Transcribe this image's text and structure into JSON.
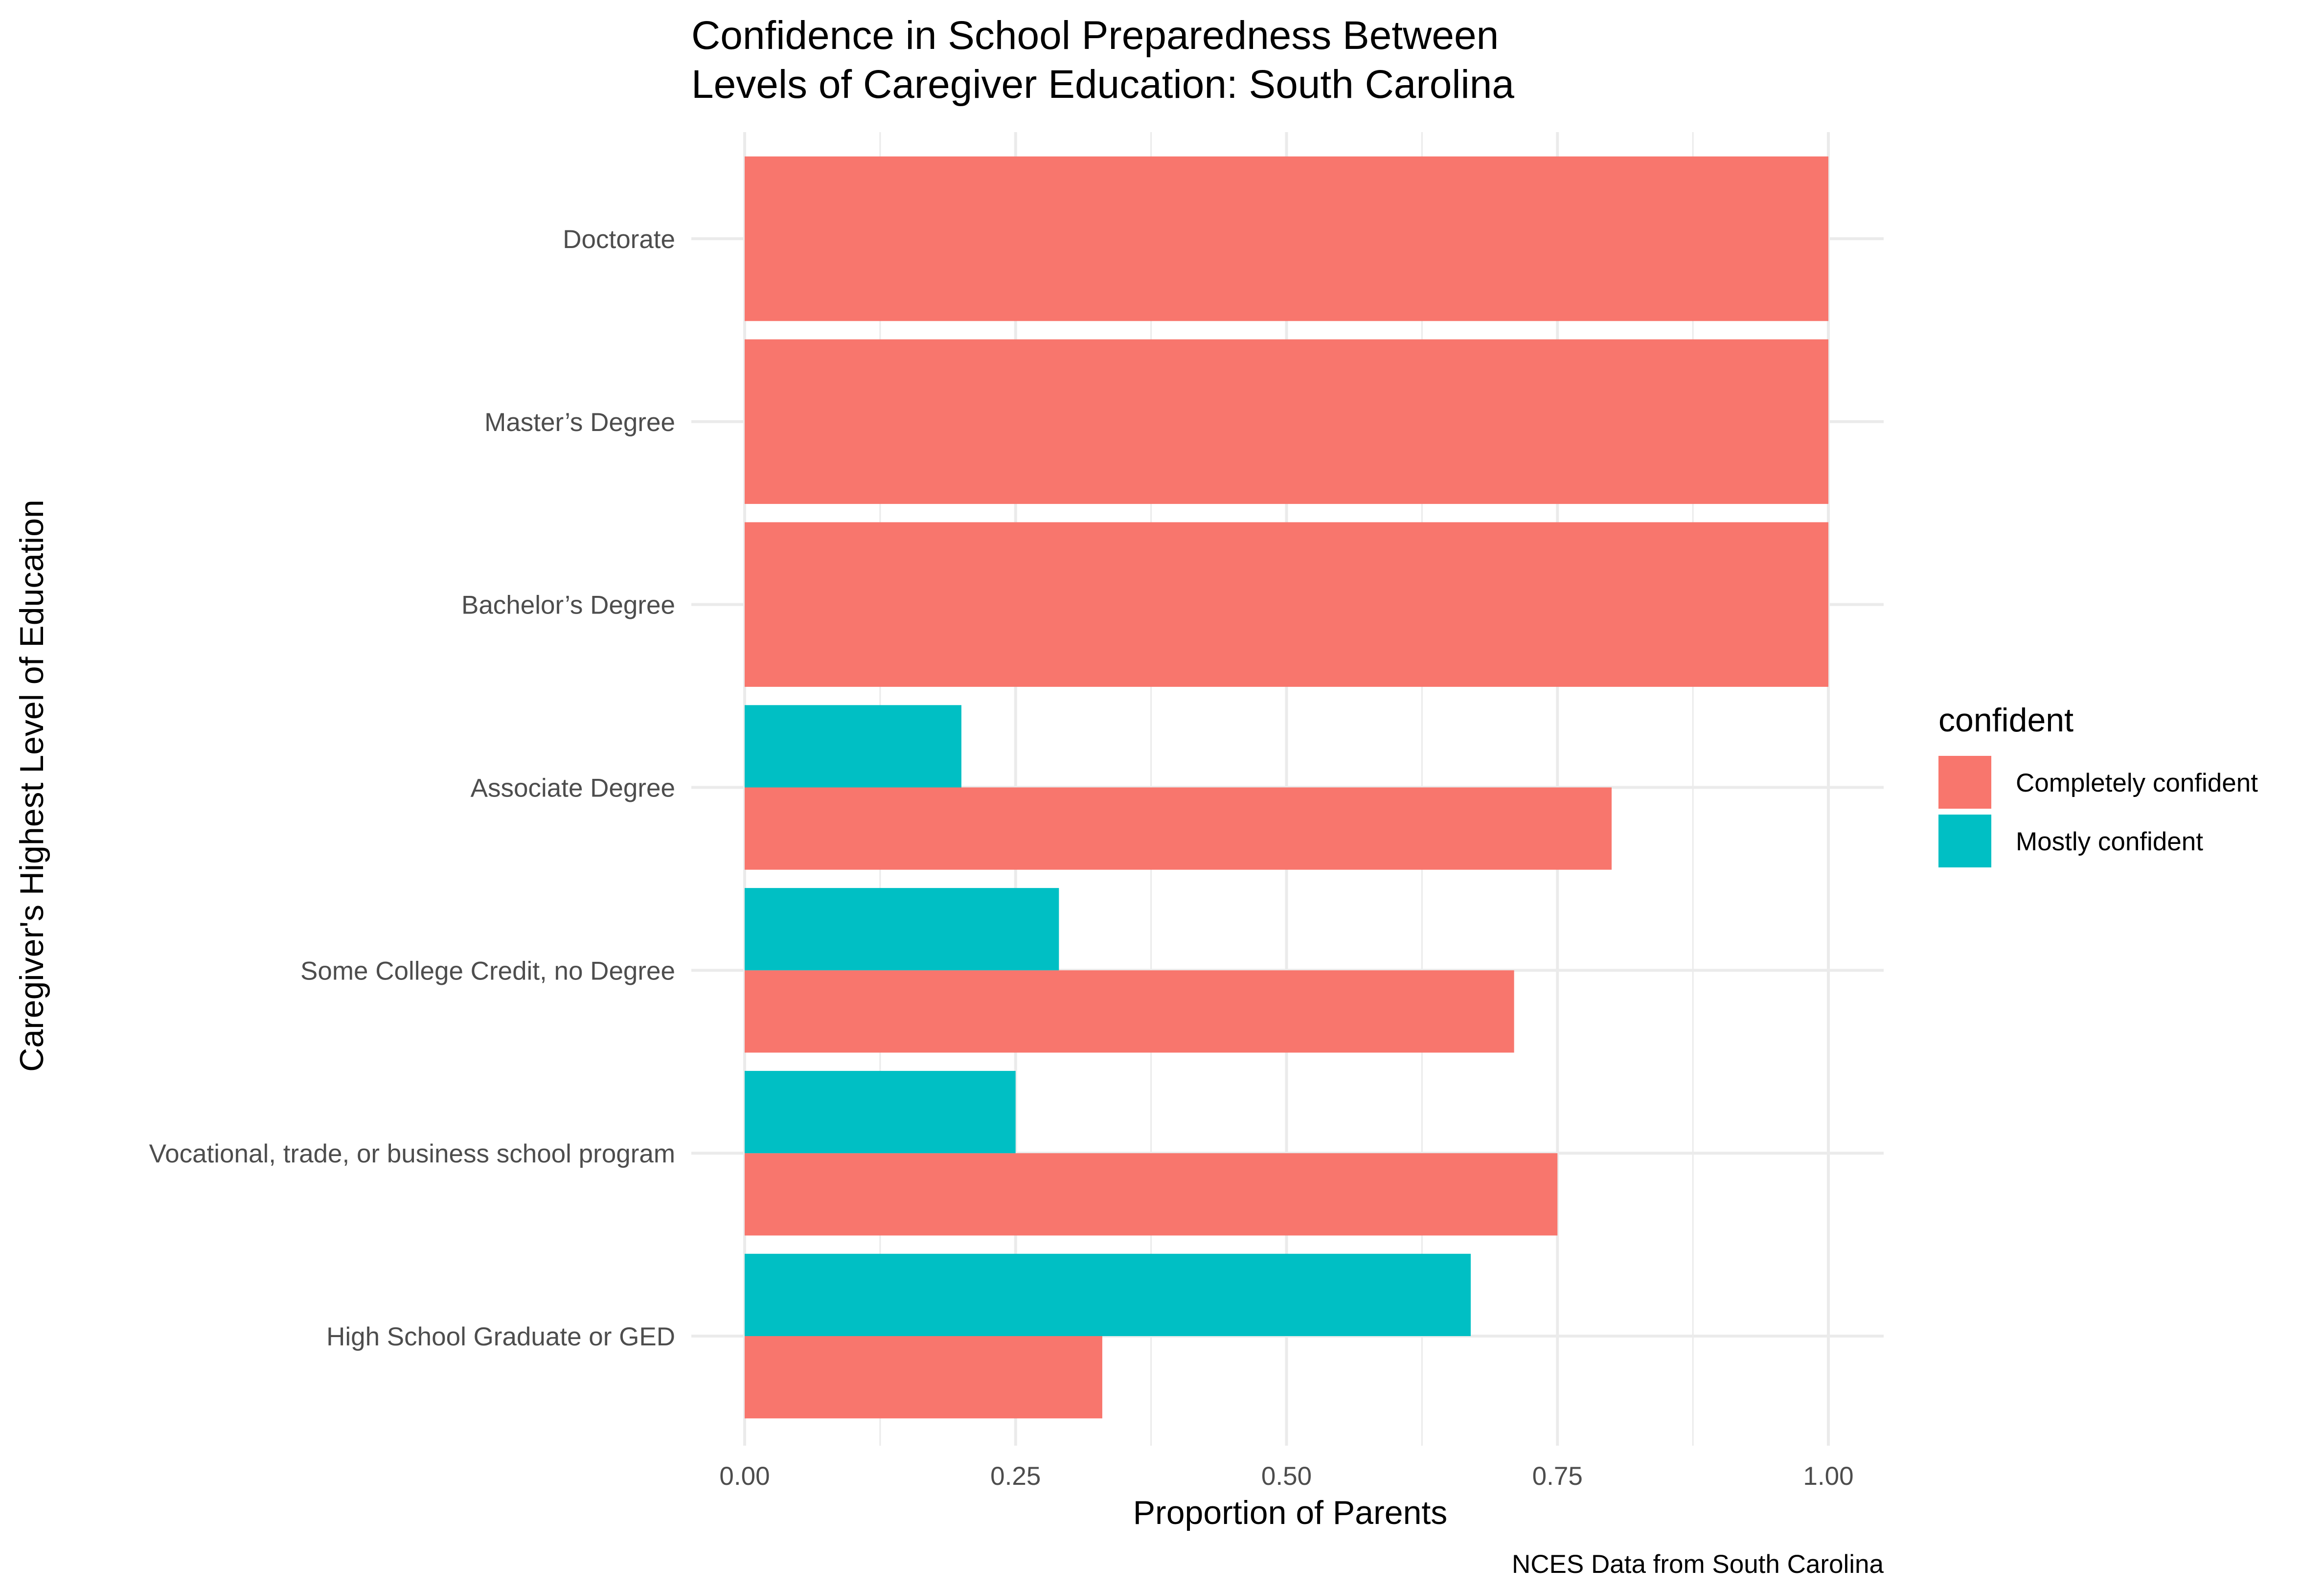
{
  "chart_data": {
    "type": "bar",
    "orientation": "horizontal",
    "title": [
      "Confidence in School Preparedness Between",
      "Levels of Caregiver Education: South Carolina"
    ],
    "xlabel": "Proportion of Parents",
    "ylabel": "Caregiver's Highest Level of Education",
    "caption": "NCES Data from South Carolina",
    "xlim": [
      0,
      1
    ],
    "x_ticks": [
      "0.00",
      "0.25",
      "0.50",
      "0.75",
      "1.00"
    ],
    "grid": true,
    "legend": {
      "title": "confident",
      "position": "right"
    },
    "categories": [
      "High School Graduate or GED",
      "Vocational, trade, or business school program",
      "Some College Credit, no Degree",
      "Associate Degree",
      "Bachelor’s Degree",
      "Master’s Degree",
      "Doctorate"
    ],
    "series": [
      {
        "name": "Completely confident",
        "color": "#F8766D",
        "values": [
          0.33,
          0.75,
          0.71,
          0.8,
          1.0,
          1.0,
          1.0
        ]
      },
      {
        "name": "Mostly confident",
        "color": "#00BFC4",
        "values": [
          0.67,
          0.25,
          0.29,
          0.2,
          null,
          null,
          null
        ]
      }
    ]
  }
}
